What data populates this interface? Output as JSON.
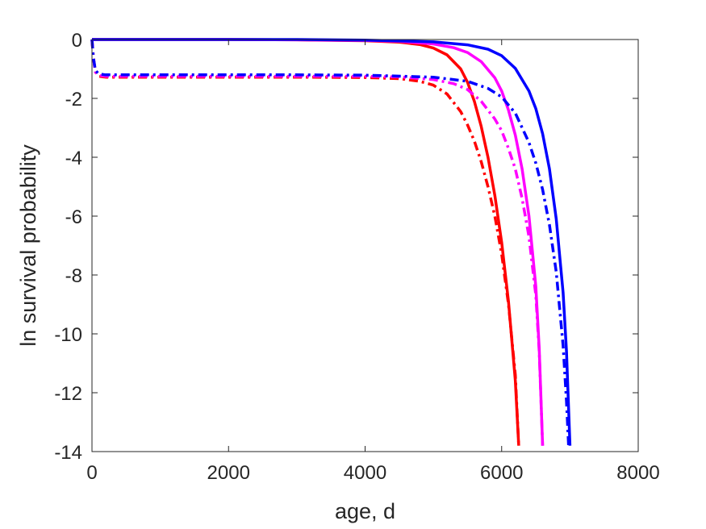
{
  "chart_data": {
    "type": "line",
    "title": "",
    "xlabel": "age, d",
    "ylabel": "ln survival probability",
    "xlim": [
      0,
      8000
    ],
    "ylim": [
      -14,
      0
    ],
    "xticks": [
      0,
      2000,
      4000,
      6000,
      8000
    ],
    "yticks": [
      0,
      -2,
      -4,
      -6,
      -8,
      -10,
      -12,
      -14
    ],
    "xtick_labels": [
      "0",
      "2000",
      "4000",
      "6000",
      "8000"
    ],
    "ytick_labels": [
      "0",
      "-2",
      "-4",
      "-6",
      "-8",
      "-10",
      "-12",
      "-14"
    ],
    "grid": false,
    "legend": "none",
    "series": [
      {
        "color": "#ff0000",
        "style": "solid",
        "x": [
          0,
          1000,
          2000,
          3000,
          4000,
          4500,
          4800,
          5000,
          5200,
          5400,
          5500,
          5600,
          5700,
          5800,
          5900,
          6000,
          6100,
          6200,
          6250
        ],
        "y": [
          0,
          0,
          0,
          -0.01,
          -0.04,
          -0.09,
          -0.17,
          -0.29,
          -0.52,
          -1.0,
          -1.45,
          -2.1,
          -2.95,
          -4.0,
          -5.3,
          -6.9,
          -8.9,
          -11.6,
          -13.8
        ]
      },
      {
        "color": "#ff00ff",
        "style": "solid",
        "x": [
          0,
          1000,
          2000,
          3000,
          4000,
          4500,
          5000,
          5300,
          5500,
          5700,
          5900,
          6000,
          6100,
          6200,
          6300,
          6400,
          6500,
          6550,
          6600
        ],
        "y": [
          0,
          0,
          0,
          -0.01,
          -0.03,
          -0.06,
          -0.15,
          -0.28,
          -0.44,
          -0.75,
          -1.3,
          -1.75,
          -2.4,
          -3.25,
          -4.4,
          -6.0,
          -8.4,
          -10.5,
          -13.8
        ]
      },
      {
        "color": "#0000ff",
        "style": "solid",
        "x": [
          0,
          1000,
          2000,
          3000,
          4000,
          5000,
          5500,
          5800,
          6000,
          6200,
          6400,
          6500,
          6600,
          6700,
          6800,
          6900,
          6950,
          7000
        ],
        "y": [
          0,
          0,
          0,
          0,
          -0.02,
          -0.08,
          -0.18,
          -0.33,
          -0.55,
          -0.98,
          -1.75,
          -2.35,
          -3.2,
          -4.4,
          -6.1,
          -8.6,
          -10.6,
          -13.8
        ]
      },
      {
        "color": "#ff0000",
        "style": "dashdot",
        "x": [
          0,
          20,
          50,
          100,
          200,
          1000,
          2000,
          3000,
          4000,
          4500,
          4800,
          5000,
          5200,
          5400,
          5500,
          5600,
          5700,
          5800,
          5900,
          6000,
          6100,
          6200,
          6250
        ],
        "y": [
          0,
          -0.6,
          -1.1,
          -1.25,
          -1.28,
          -1.28,
          -1.28,
          -1.28,
          -1.29,
          -1.33,
          -1.42,
          -1.55,
          -1.85,
          -2.45,
          -2.9,
          -3.45,
          -4.15,
          -5.0,
          -6.0,
          -7.3,
          -9.0,
          -11.4,
          -13.8
        ]
      },
      {
        "color": "#ff00ff",
        "style": "dashdot",
        "x": [
          0,
          20,
          50,
          100,
          200,
          1000,
          2000,
          3000,
          4000,
          4500,
          5000,
          5300,
          5500,
          5700,
          5900,
          6000,
          6100,
          6200,
          6300,
          6400,
          6500,
          6550,
          6600
        ],
        "y": [
          0,
          -0.6,
          -1.1,
          -1.22,
          -1.25,
          -1.25,
          -1.25,
          -1.25,
          -1.25,
          -1.27,
          -1.36,
          -1.5,
          -1.7,
          -2.1,
          -2.7,
          -3.1,
          -3.7,
          -4.4,
          -5.4,
          -6.7,
          -8.7,
          -10.6,
          -13.8
        ]
      },
      {
        "color": "#0000ff",
        "style": "dashdot",
        "x": [
          0,
          20,
          50,
          100,
          200,
          1000,
          2000,
          3000,
          4000,
          5000,
          5500,
          5800,
          6000,
          6200,
          6400,
          6500,
          6600,
          6700,
          6800,
          6900,
          6950,
          6980
        ],
        "y": [
          0,
          -0.6,
          -1.05,
          -1.17,
          -1.2,
          -1.2,
          -1.2,
          -1.2,
          -1.21,
          -1.28,
          -1.42,
          -1.66,
          -1.95,
          -2.5,
          -3.5,
          -4.2,
          -5.1,
          -6.3,
          -7.9,
          -10.4,
          -12.3,
          -13.8
        ]
      }
    ]
  }
}
